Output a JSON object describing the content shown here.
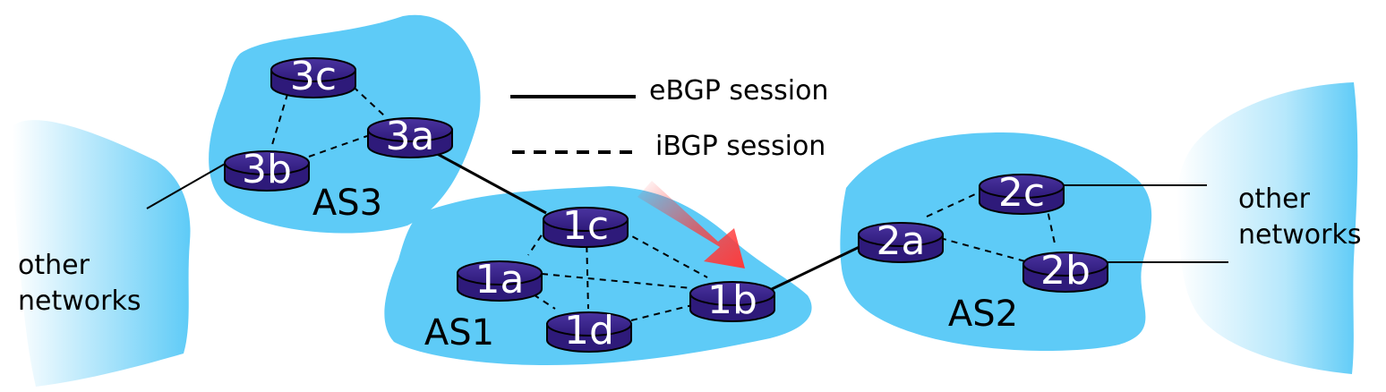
{
  "colors": {
    "as_cloud": "#5ecbf7",
    "router": "#2e1a7a",
    "router_outline": "#000000",
    "highlight_arrow": "#ff3a3a"
  },
  "legend": {
    "ebgp_label": "eBGP session",
    "ibgp_label": "iBGP session"
  },
  "autonomous_systems": {
    "as1": "AS1",
    "as2": "AS2",
    "as3": "AS3"
  },
  "routers": {
    "r1a": "1a",
    "r1b": "1b",
    "r1c": "1c",
    "r1d": "1d",
    "r2a": "2a",
    "r2b": "2b",
    "r2c": "2c",
    "r3a": "3a",
    "r3b": "3b",
    "r3c": "3c"
  },
  "other_networks": {
    "left": [
      "other",
      "networks"
    ],
    "right": [
      "other",
      "networks"
    ]
  }
}
